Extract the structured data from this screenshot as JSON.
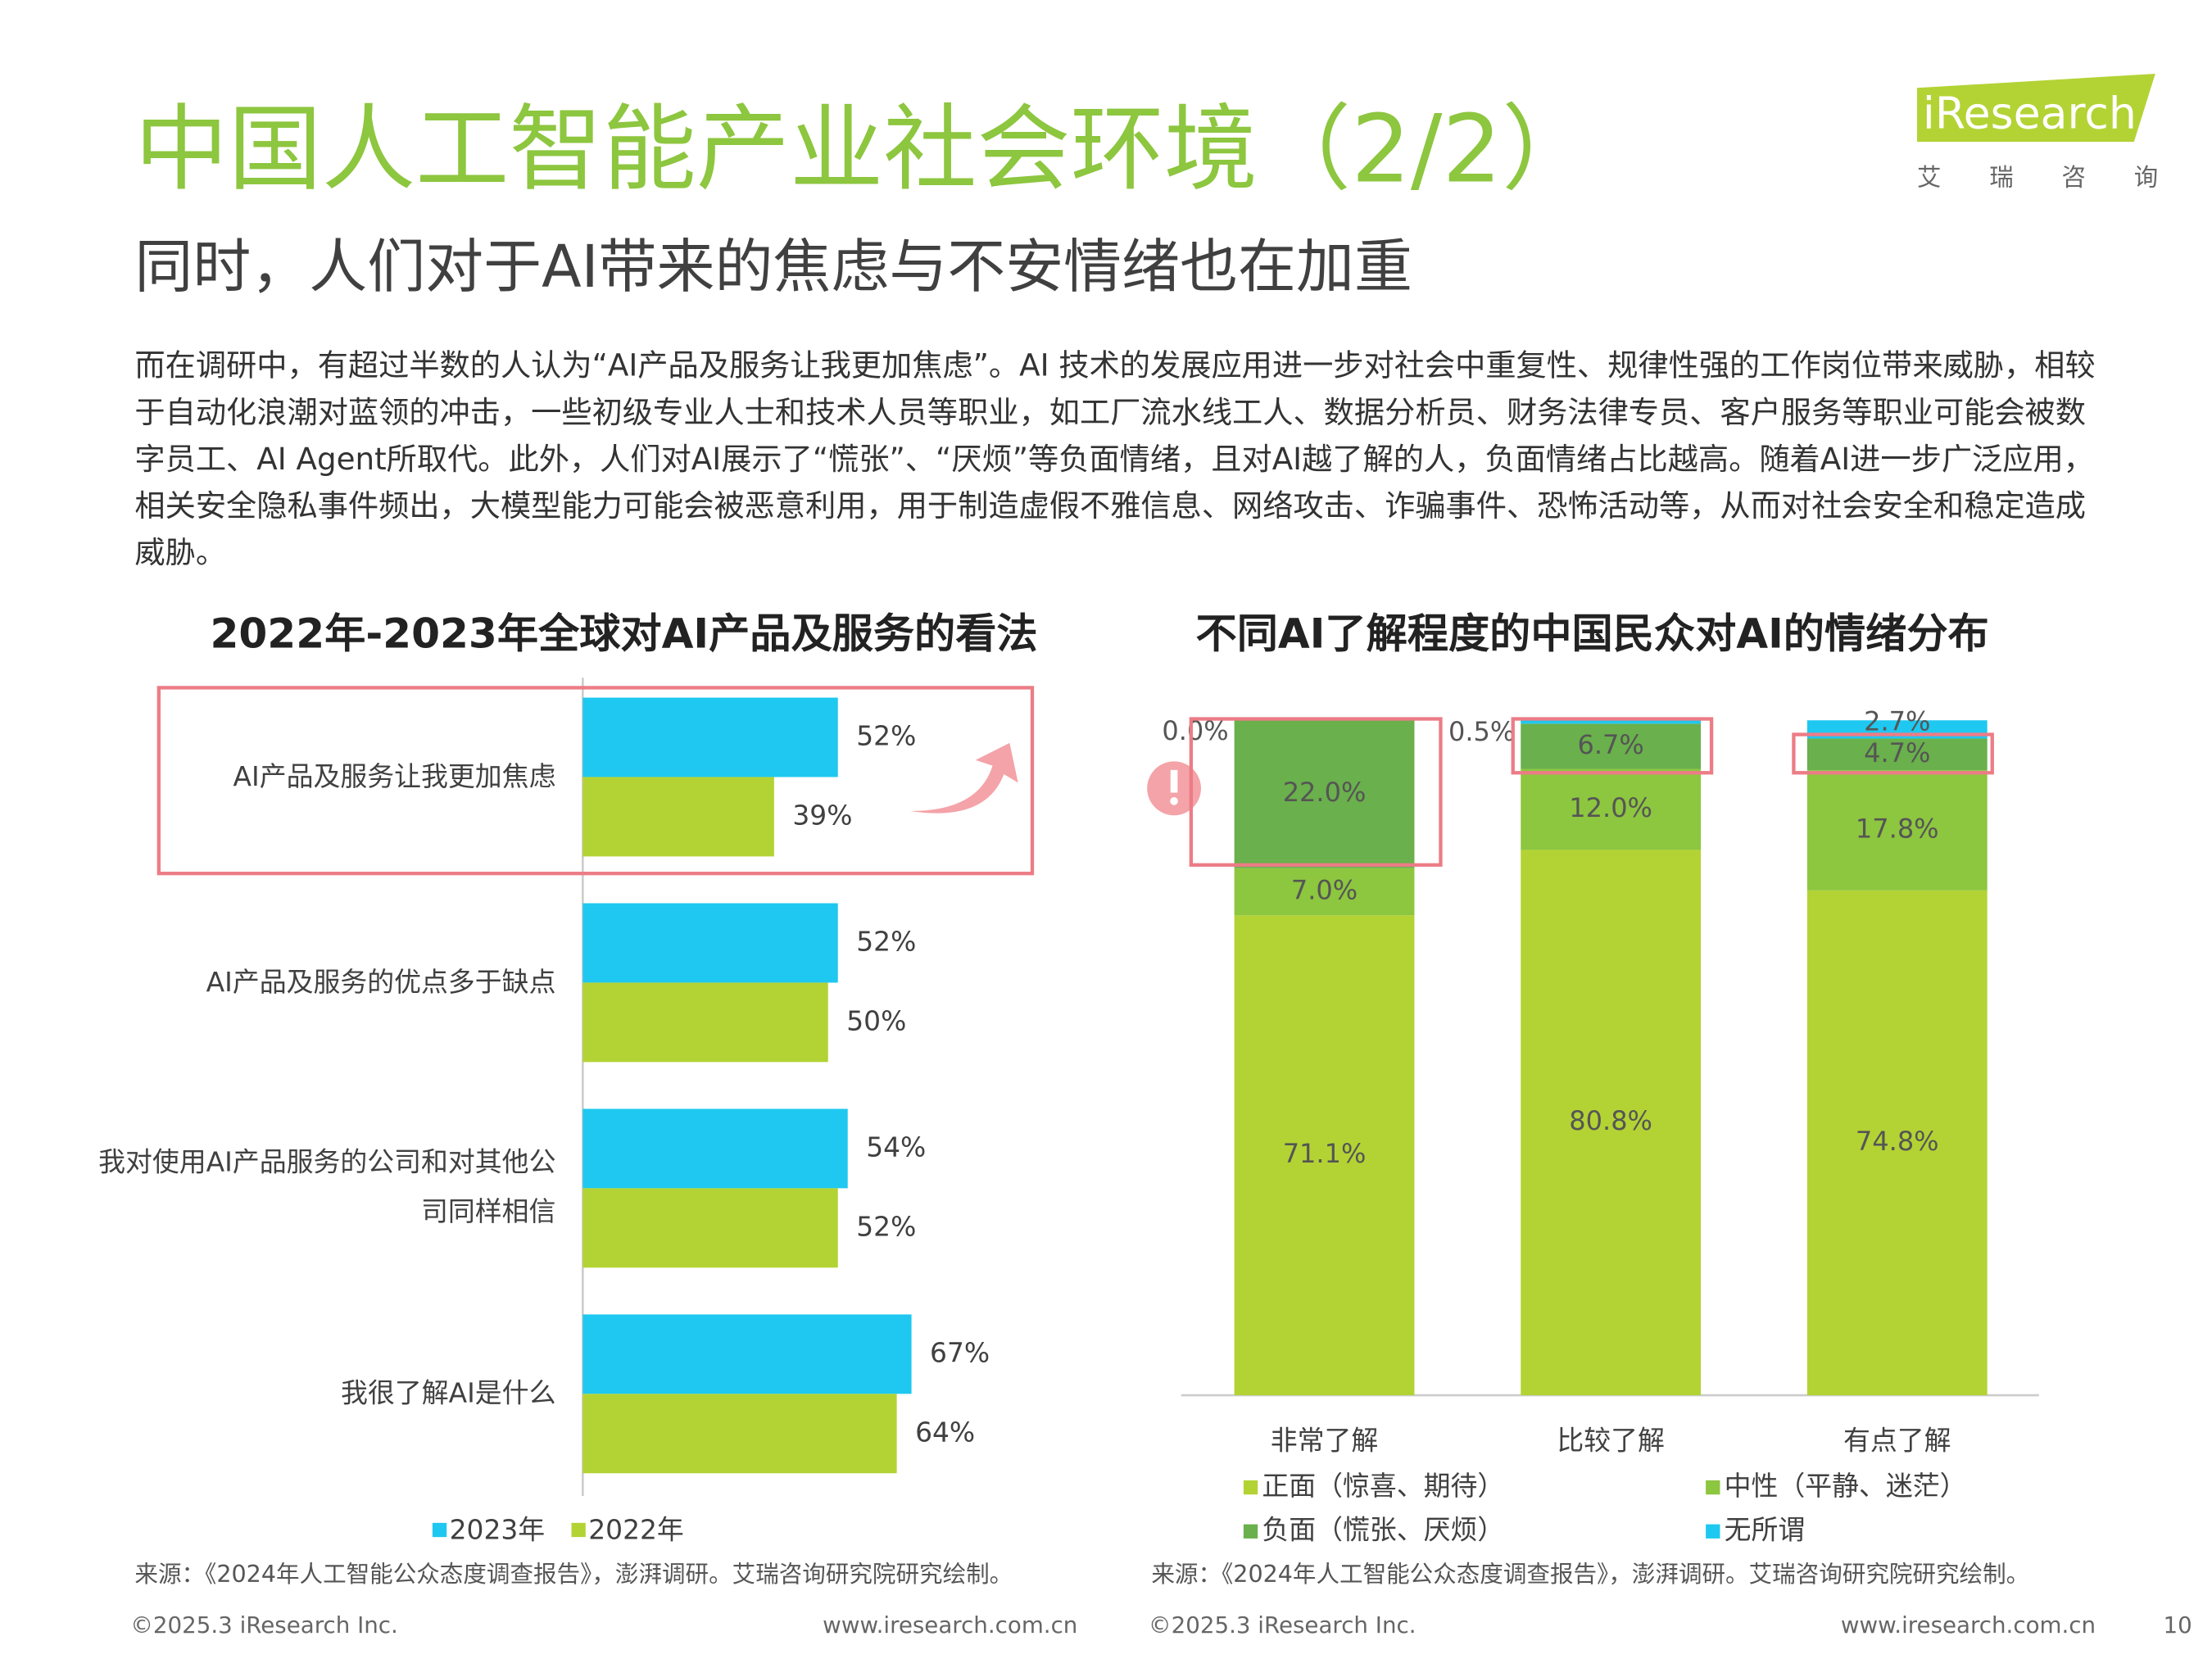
{
  "header": {
    "title": "中国人工智能产业社会环境（2/2）",
    "subtitle": "同时，人们对于AI带来的焦虑与不安情绪也在加重",
    "logo": "iResearch",
    "logo_sub": "艾 瑞 咨 询"
  },
  "body": "而在调研中，有超过半数的人认为“AI产品及服务让我更加焦虑”。AI 技术的发展应用进一步对社会中重复性、规律性强的工作岗位带来威胁，相较于自动化浪潮对蓝领的冲击，一些初级专业人士和技术人员等职业，如工厂流水线工人、数据分析员、财务法律专员、客户服务等职业可能会被数字员工、AI Agent所取代。此外，人们对AI展示了“慌张”、“厌烦”等负面情绪，且对AI越了解的人，负面情绪占比越高。随着AI进一步广泛应用，相关安全隐私事件频出，大模型能力可能会被恶意利用，用于制造虚假不雅信息、网络攻击、诈骗事件、恐怖活动等，从而对社会安全和稳定造成威胁。",
  "chart_data": [
    {
      "type": "bar",
      "orientation": "horizontal",
      "title": "2022年-2023年全球对AI产品及服务的看法",
      "categories": [
        "AI产品及服务让我更加焦虑",
        "AI产品及服务的优点多于缺点",
        "我对使用AI产品服务的公司和对其他公司同样相信",
        "我很了解AI是什么"
      ],
      "series": [
        {
          "name": "2023年",
          "color": "#1ec8f0",
          "values": [
            52,
            52,
            54,
            67
          ],
          "value_labels": [
            "52%",
            "52%",
            "54%",
            "67%"
          ]
        },
        {
          "name": "2022年",
          "color": "#b3d334",
          "values": [
            39,
            50,
            52,
            64
          ],
          "value_labels": [
            "39%",
            "50%",
            "52%",
            "64%"
          ]
        }
      ]
    },
    {
      "type": "stacked_bar",
      "title": "不同AI了解程度的中国民众对AI的情绪分布",
      "categories": [
        "非常了解",
        "比较了解",
        "有点了解"
      ],
      "series": [
        {
          "name": "正面（惊喜、期待）",
          "color": "#b3d334",
          "values": [
            71.1,
            80.8,
            74.8
          ],
          "value_labels": [
            "71.1%",
            "80.8%",
            "74.8%"
          ]
        },
        {
          "name": "中性（平静、迷茫）",
          "color": "#8dc63f",
          "values": [
            7.0,
            12.0,
            17.8
          ],
          "value_labels": [
            "7.0%",
            "12.0%",
            "17.8%"
          ]
        },
        {
          "name": "负面（慌张、厌烦）",
          "color": "#6ab04c",
          "values": [
            22.0,
            6.7,
            4.7
          ],
          "value_labels": [
            "22.0%",
            "6.7%",
            "4.7%"
          ]
        },
        {
          "name": "无所谓",
          "color": "#1ec8f0",
          "values": [
            0.0,
            0.5,
            2.7
          ],
          "value_labels": [
            "0.0%",
            "0.5%",
            "2.7%"
          ]
        }
      ]
    }
  ],
  "footer": {
    "sources": [
      "来源：《2024年人工智能公众态度调查报告》，澎湃调研。艾瑞咨询研究院研究绘制。",
      "来源：《2024年人工智能公众态度调查报告》，澎湃调研。艾瑞咨询研究院研究绘制。"
    ],
    "copyrights": [
      "©2025.3 iResearch Inc.",
      "©2025.3 iResearch Inc."
    ],
    "websites": [
      "www.iresearch.com.cn",
      "www.iresearch.com.cn"
    ],
    "page": "10"
  }
}
